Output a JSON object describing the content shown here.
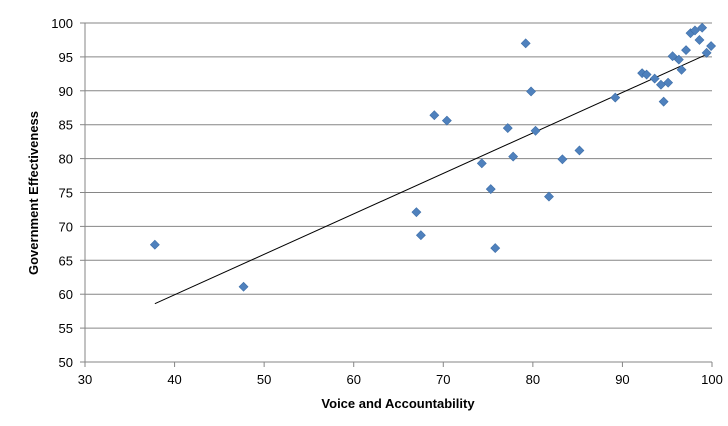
{
  "chart_data": {
    "type": "scatter",
    "title": "",
    "xlabel": "Voice and Accountability",
    "ylabel": "Government Effectiveness",
    "xlim": [
      30,
      100
    ],
    "ylim": [
      50,
      100
    ],
    "x_ticks": [
      30,
      40,
      50,
      60,
      70,
      80,
      90,
      100
    ],
    "y_ticks": [
      50,
      55,
      60,
      65,
      70,
      75,
      80,
      85,
      90,
      95,
      100
    ],
    "grid": "horizontal",
    "legend": "none",
    "marker": "diamond",
    "marker_color": "#4F81BD",
    "trendline": {
      "type": "linear",
      "color": "#000000",
      "points": [
        [
          37.8,
          58.6
        ],
        [
          99.8,
          95.6
        ]
      ]
    },
    "points": [
      [
        37.8,
        67.3
      ],
      [
        47.7,
        61.1
      ],
      [
        67.0,
        72.1
      ],
      [
        67.5,
        68.7
      ],
      [
        69.0,
        86.4
      ],
      [
        70.4,
        85.6
      ],
      [
        74.3,
        79.3
      ],
      [
        75.3,
        75.5
      ],
      [
        75.8,
        66.8
      ],
      [
        77.2,
        84.5
      ],
      [
        77.8,
        80.3
      ],
      [
        79.2,
        97.0
      ],
      [
        79.8,
        89.9
      ],
      [
        80.3,
        84.1
      ],
      [
        81.8,
        74.4
      ],
      [
        83.3,
        79.9
      ],
      [
        85.2,
        81.2
      ],
      [
        89.2,
        89.0
      ],
      [
        92.2,
        92.6
      ],
      [
        92.7,
        92.4
      ],
      [
        93.6,
        91.8
      ],
      [
        94.3,
        90.9
      ],
      [
        94.6,
        88.4
      ],
      [
        95.1,
        91.2
      ],
      [
        95.6,
        95.1
      ],
      [
        96.3,
        94.6
      ],
      [
        96.6,
        93.1
      ],
      [
        97.1,
        96.0
      ],
      [
        97.6,
        98.5
      ],
      [
        98.1,
        98.9
      ],
      [
        98.6,
        97.5
      ],
      [
        98.9,
        99.3
      ],
      [
        99.4,
        95.6
      ],
      [
        99.9,
        96.6
      ]
    ]
  }
}
